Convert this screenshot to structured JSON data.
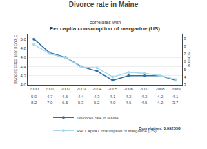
{
  "chart_data": {
    "type": "line",
    "title": "Divorce rate in Maine",
    "subtitle": "correlates with",
    "annotations": [
      "Per capita consumption of margarine (US)",
      "Correlation: 0.992558"
    ],
    "x": [
      2000,
      2001,
      2002,
      2003,
      2004,
      2005,
      2006,
      2007,
      2008,
      2009
    ],
    "xlim": [
      1999.6,
      2009.4
    ],
    "xticks": [
      2000,
      2001,
      2002,
      2003,
      2004,
      2005,
      2006,
      2007,
      2008,
      2009
    ],
    "ylabel": "DIVORCES PER 1000 PEOPLE",
    "y2label": "POUNDS",
    "ylim": [
      4.0,
      5.1
    ],
    "yticks": [
      {
        "value": 4.0,
        "label": "4.0"
      },
      4.2,
      4.4,
      4.6,
      4.8,
      {
        "value": 5.0,
        "label": "5.0"
      }
    ],
    "y2lim": [
      3.0,
      9.5
    ],
    "y2ticks": [
      3,
      4,
      5,
      6,
      7,
      8,
      9
    ],
    "grid": true,
    "legend": "bottom",
    "data_labels": true,
    "series": [
      {
        "name": "Divorces rate in Maine",
        "color": "#2e6da4",
        "marker": "circle",
        "values": [
          5.0,
          4.7,
          4.6,
          4.4,
          4.3,
          4.1,
          4.2,
          4.2,
          4.2,
          4.1
        ],
        "value_labels": [
          "5.0",
          "4.7",
          "4.6",
          "4.4",
          "4.3",
          "4.1",
          "4.2",
          "4.2",
          "4.2",
          "4.1"
        ]
      },
      {
        "name": "Per Capita Consumption of Margarine (US)",
        "color": "#a8d8ea",
        "marker": "circle",
        "axis": "y2",
        "values": [
          8.2,
          7.0,
          6.5,
          5.3,
          5.2,
          4.0,
          4.6,
          4.5,
          4.2,
          3.7
        ],
        "value_labels": [
          "8.2",
          "7.0",
          "6.5",
          "5.3",
          "5.2",
          "4.0",
          "4.6",
          "4.5",
          "4.2",
          "3.7"
        ]
      }
    ]
  }
}
